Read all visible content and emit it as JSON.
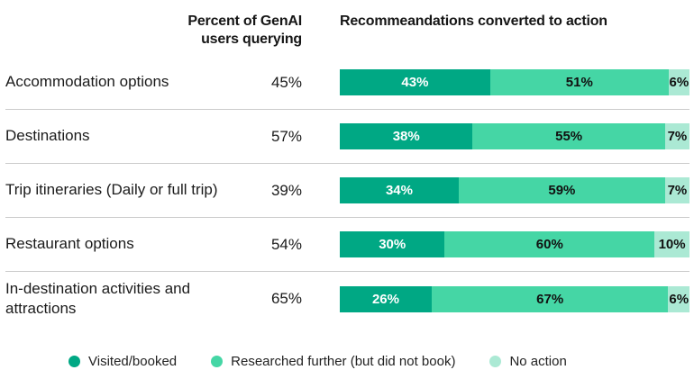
{
  "header": {
    "query_column_title": "Percent of GenAI\nusers querying",
    "action_column_title": "Recommeandations converted to action"
  },
  "colors": {
    "visited_booked": "#00A884",
    "researched_further": "#45D6A5",
    "no_action": "#ABE9D4",
    "divider": "#cbcbcb",
    "text": "#161616"
  },
  "chart_data": {
    "type": "bar",
    "orientation": "horizontal",
    "stacked": true,
    "title": "Recommeandations converted to action",
    "secondary_column_title": "Percent of GenAI users querying",
    "categories": [
      "Accommodation options",
      "Destinations",
      "Trip itineraries (Daily or full trip)",
      "Restaurant options",
      "In-destination activities and attractions"
    ],
    "percent_querying": [
      45,
      57,
      39,
      54,
      65
    ],
    "series": [
      {
        "name": "Visited/booked",
        "color": "#00A884",
        "values": [
          43,
          38,
          34,
          30,
          26
        ]
      },
      {
        "name": "Researched further (but did not book)",
        "color": "#45D6A5",
        "values": [
          51,
          55,
          59,
          60,
          67
        ]
      },
      {
        "name": "No action",
        "color": "#ABE9D4",
        "values": [
          6,
          7,
          7,
          10,
          6
        ]
      }
    ],
    "xlim": [
      0,
      100
    ],
    "value_suffix": "%",
    "grid": false,
    "legend_position": "bottom"
  }
}
